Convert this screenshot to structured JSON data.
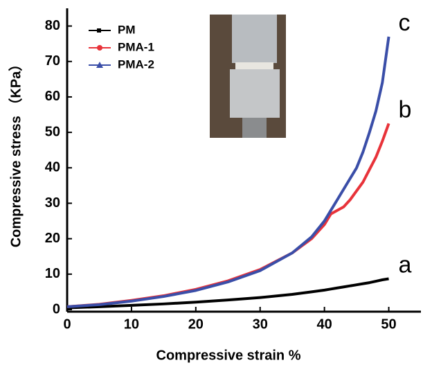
{
  "chart_data": {
    "type": "line",
    "x_label": "Compressive strain  %",
    "y_label": "Compressive stress （KPa）",
    "xlim": [
      0,
      55
    ],
    "xticks": [
      0,
      10,
      20,
      30,
      40,
      50
    ],
    "ylim": [
      0,
      85
    ],
    "yticks": [
      0,
      10,
      20,
      30,
      40,
      50,
      60,
      70,
      80
    ],
    "x": [
      0,
      5,
      10,
      15,
      20,
      25,
      30,
      35,
      38,
      40,
      41,
      42,
      43,
      44,
      45,
      46,
      47,
      48,
      49,
      50
    ],
    "series": [
      {
        "name": "PM",
        "color": "#000000",
        "values": [
          0.5,
          0.8,
          1.2,
          1.6,
          2.1,
          2.7,
          3.4,
          4.3,
          5.0,
          5.5,
          5.8,
          6.1,
          6.4,
          6.7,
          7.0,
          7.3,
          7.6,
          8.0,
          8.4,
          8.7
        ]
      },
      {
        "name": "PMA-1",
        "color": "#e8333a",
        "values": [
          0.8,
          1.5,
          2.6,
          3.9,
          5.7,
          8.1,
          11.3,
          16,
          20,
          24,
          27,
          28,
          29,
          31,
          33.5,
          36,
          39.5,
          43,
          47.5,
          52.5
        ]
      },
      {
        "name": "PMA-2",
        "color": "#3a4ea8",
        "values": [
          0.8,
          1.4,
          2.4,
          3.7,
          5.4,
          7.8,
          11,
          16,
          20.5,
          25,
          28,
          31,
          34,
          37,
          40,
          44.5,
          50,
          56,
          64,
          77
        ]
      }
    ],
    "annotations": [
      "a",
      "b",
      "c"
    ]
  }
}
